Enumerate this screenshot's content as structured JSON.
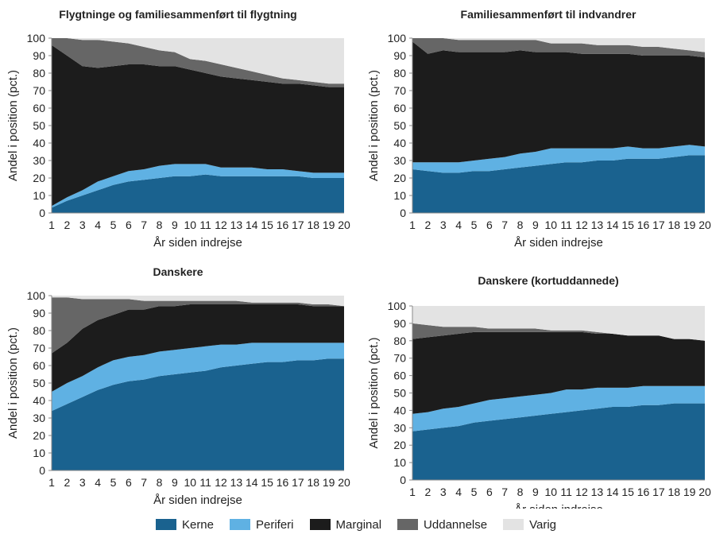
{
  "legend": [
    {
      "name": "Kerne",
      "color": "#1a628f"
    },
    {
      "name": "Periferi",
      "color": "#5fb1e3"
    },
    {
      "name": "Marginal",
      "color": "#3a3a3a"
    },
    {
      "name": "Uddannelse",
      "color": "#777777"
    },
    {
      "name": "Varig",
      "color": "#e3e3e3"
    }
  ],
  "chart_data": [
    {
      "type": "area",
      "stacked": true,
      "title": "Flygtninge og familiesammenført til flygtning",
      "xlabel": "År siden indrejse",
      "ylabel": "Andel i position (pct.)",
      "x": [
        1,
        2,
        3,
        4,
        5,
        6,
        7,
        8,
        9,
        10,
        11,
        12,
        13,
        14,
        15,
        16,
        17,
        18,
        19,
        20
      ],
      "ylim": [
        0,
        100
      ],
      "yticks": [
        0,
        10,
        20,
        30,
        40,
        50,
        60,
        70,
        80,
        90,
        100
      ],
      "series": [
        {
          "name": "Kerne",
          "values": [
            3,
            7,
            10,
            13,
            16,
            18,
            19,
            20,
            21,
            21,
            22,
            21,
            21,
            21,
            21,
            21,
            21,
            20,
            20,
            20
          ]
        },
        {
          "name": "Periferi",
          "values": [
            1,
            2,
            3,
            5,
            5,
            6,
            6,
            7,
            7,
            7,
            6,
            5,
            5,
            5,
            4,
            4,
            3,
            3,
            3,
            3
          ]
        },
        {
          "name": "Marginal",
          "values": [
            92,
            81,
            71,
            65,
            63,
            61,
            60,
            57,
            56,
            54,
            52,
            52,
            51,
            50,
            50,
            49,
            50,
            50,
            49,
            49
          ]
        },
        {
          "name": "Uddannelse",
          "values": [
            4,
            10,
            15,
            16,
            14,
            12,
            10,
            9,
            8,
            6,
            7,
            7,
            6,
            5,
            4,
            3,
            2,
            2,
            2,
            2
          ]
        },
        {
          "name": "Varig",
          "values": [
            0,
            0,
            1,
            1,
            2,
            3,
            5,
            7,
            8,
            12,
            13,
            15,
            17,
            19,
            21,
            23,
            24,
            25,
            26,
            26
          ]
        }
      ]
    },
    {
      "type": "area",
      "stacked": true,
      "title": "Familiesammenført til indvandrer",
      "xlabel": "År siden indrejse",
      "ylabel": "Andel i position (pct.)",
      "x": [
        1,
        2,
        3,
        4,
        5,
        6,
        7,
        8,
        9,
        10,
        11,
        12,
        13,
        14,
        15,
        16,
        17,
        18,
        19,
        20
      ],
      "ylim": [
        0,
        100
      ],
      "yticks": [
        0,
        10,
        20,
        30,
        40,
        50,
        60,
        70,
        80,
        90,
        100
      ],
      "series": [
        {
          "name": "Kerne",
          "values": [
            25,
            24,
            23,
            23,
            24,
            24,
            25,
            26,
            27,
            28,
            29,
            29,
            30,
            30,
            31,
            31,
            31,
            32,
            33,
            33
          ]
        },
        {
          "name": "Periferi",
          "values": [
            4,
            5,
            6,
            6,
            6,
            7,
            7,
            8,
            8,
            9,
            8,
            8,
            7,
            7,
            7,
            6,
            6,
            6,
            6,
            5
          ]
        },
        {
          "name": "Marginal",
          "values": [
            69,
            62,
            64,
            63,
            62,
            61,
            60,
            59,
            57,
            55,
            55,
            54,
            54,
            54,
            53,
            53,
            53,
            52,
            51,
            51
          ]
        },
        {
          "name": "Uddannelse",
          "values": [
            2,
            9,
            7,
            7,
            7,
            7,
            7,
            6,
            7,
            5,
            5,
            6,
            5,
            5,
            5,
            5,
            5,
            4,
            3,
            3
          ]
        },
        {
          "name": "Varig",
          "values": [
            0,
            0,
            0,
            1,
            1,
            1,
            1,
            1,
            1,
            3,
            3,
            3,
            4,
            4,
            4,
            5,
            5,
            6,
            7,
            8
          ]
        }
      ]
    },
    {
      "type": "area",
      "stacked": true,
      "title": "Danskere",
      "xlabel": "År siden indrejse",
      "ylabel": "Andel i position (pct.)",
      "x": [
        1,
        2,
        3,
        4,
        5,
        6,
        7,
        8,
        9,
        10,
        11,
        12,
        13,
        14,
        15,
        16,
        17,
        18,
        19,
        20
      ],
      "ylim": [
        0,
        100
      ],
      "yticks": [
        0,
        10,
        20,
        30,
        40,
        50,
        60,
        70,
        80,
        90,
        100
      ],
      "series": [
        {
          "name": "Kerne",
          "values": [
            34,
            38,
            42,
            46,
            49,
            51,
            52,
            54,
            55,
            56,
            57,
            59,
            60,
            61,
            62,
            62,
            63,
            63,
            64,
            64
          ]
        },
        {
          "name": "Periferi",
          "values": [
            11,
            12,
            12,
            13,
            14,
            14,
            14,
            14,
            14,
            14,
            14,
            13,
            12,
            12,
            11,
            11,
            10,
            10,
            9,
            9
          ]
        },
        {
          "name": "Marginal",
          "values": [
            22,
            23,
            27,
            27,
            26,
            27,
            26,
            26,
            25,
            25,
            24,
            23,
            23,
            22,
            22,
            22,
            22,
            21,
            21,
            21
          ]
        },
        {
          "name": "Uddannelse",
          "values": [
            32,
            26,
            17,
            12,
            9,
            6,
            5,
            3,
            3,
            2,
            2,
            2,
            2,
            1,
            1,
            1,
            1,
            1,
            1,
            0
          ]
        },
        {
          "name": "Varig",
          "values": [
            1,
            1,
            2,
            2,
            2,
            2,
            3,
            3,
            3,
            3,
            3,
            3,
            3,
            4,
            4,
            4,
            4,
            5,
            5,
            6
          ]
        }
      ]
    },
    {
      "type": "area",
      "stacked": true,
      "title": "Danskere (kortuddannede)",
      "xlabel": "År siden indrejse",
      "ylabel": "Andel i position (pct.)",
      "x": [
        1,
        2,
        3,
        4,
        5,
        6,
        7,
        8,
        9,
        10,
        11,
        12,
        13,
        14,
        15,
        16,
        17,
        18,
        19,
        20
      ],
      "ylim": [
        0,
        100
      ],
      "yticks": [
        0,
        10,
        20,
        30,
        40,
        50,
        60,
        70,
        80,
        90,
        100
      ],
      "series": [
        {
          "name": "Kerne",
          "values": [
            28,
            29,
            30,
            31,
            33,
            34,
            35,
            36,
            37,
            38,
            39,
            40,
            41,
            42,
            42,
            43,
            43,
            44,
            44,
            44
          ]
        },
        {
          "name": "Periferi",
          "values": [
            10,
            10,
            11,
            11,
            11,
            12,
            12,
            12,
            12,
            12,
            13,
            12,
            12,
            11,
            11,
            11,
            11,
            10,
            10,
            10
          ]
        },
        {
          "name": "Marginal",
          "values": [
            43,
            43,
            42,
            42,
            41,
            39,
            38,
            37,
            36,
            35,
            33,
            33,
            31,
            31,
            30,
            29,
            29,
            27,
            27,
            26
          ]
        },
        {
          "name": "Uddannelse",
          "values": [
            9,
            7,
            5,
            4,
            3,
            2,
            2,
            2,
            2,
            1,
            1,
            1,
            1,
            0,
            0,
            0,
            0,
            0,
            0,
            0
          ]
        },
        {
          "name": "Varig",
          "values": [
            10,
            11,
            12,
            12,
            12,
            13,
            13,
            13,
            13,
            14,
            14,
            14,
            15,
            16,
            17,
            17,
            17,
            19,
            19,
            20
          ]
        }
      ]
    }
  ]
}
